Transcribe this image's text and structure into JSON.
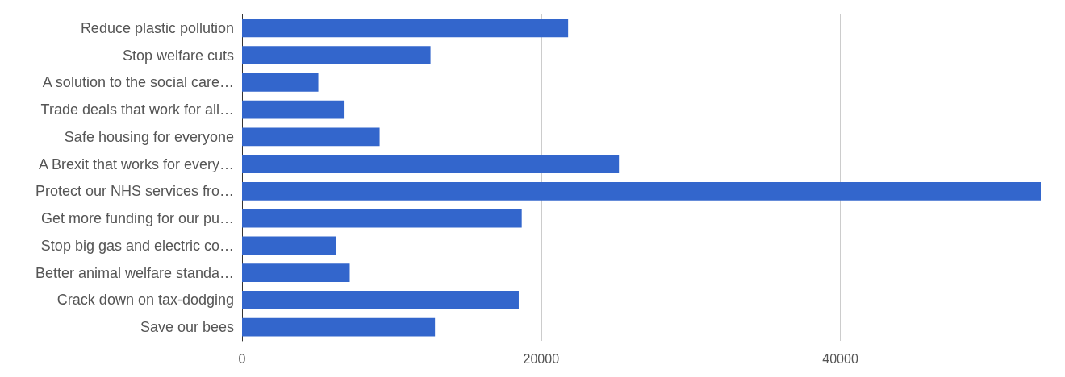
{
  "chart_data": {
    "type": "bar",
    "orientation": "horizontal",
    "categories": [
      "Reduce plastic pollution",
      "Stop welfare cuts",
      "A solution to the social care…",
      "Trade deals that work for all…",
      "Safe housing for everyone",
      "A Brexit that works for every…",
      "Protect our NHS services fro…",
      "Get more funding for our pu…",
      "Stop big gas and electric co…",
      "Better animal welfare standa…",
      "Crack down on tax-dodging",
      "Save our bees"
    ],
    "values": [
      21800,
      12600,
      5100,
      6800,
      9200,
      25200,
      53400,
      18700,
      6300,
      7200,
      18500,
      12900
    ],
    "color": "#3366cc",
    "xlim": [
      0,
      53400
    ],
    "xticks": [
      0,
      20000,
      40000
    ],
    "grid": "x"
  }
}
